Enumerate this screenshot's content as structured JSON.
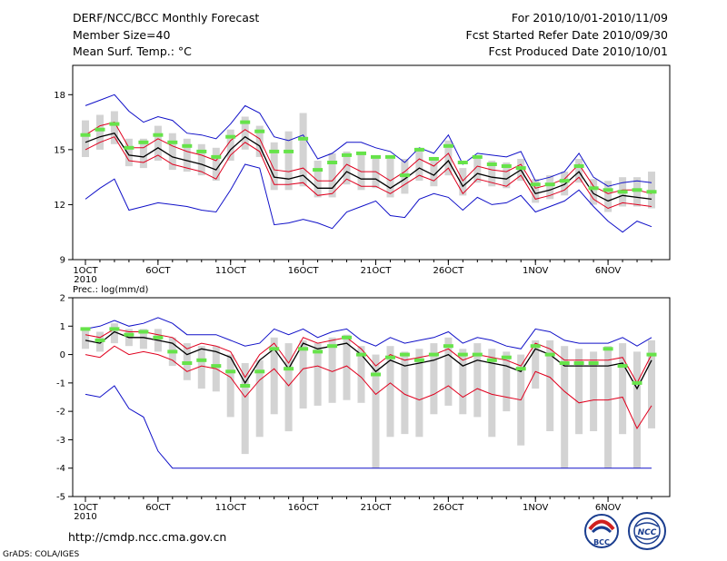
{
  "header": {
    "title": "DERF/NCC/BCC Monthly Forecast",
    "member_size": "Member Size=40",
    "variable": "Mean Surf. Temp.: °C",
    "period": "For 2010/10/01-2010/11/09",
    "fcst_started": "Fcst Started Refer Date 2010/09/30",
    "fcst_produced": "Fcst Produced Date 2010/10/01"
  },
  "footer": {
    "url": "http://cmdp.ncc.cma.gov.cn",
    "credit": "GrADS: COLA/IGES"
  },
  "logos": {
    "bcc": "BCC",
    "ncc": "NCC"
  },
  "colors": {
    "spread": "#d3d3d3",
    "observed": "#66e34a",
    "mean": "#000000",
    "inner": "#e0001e",
    "outer": "#1010c8",
    "frame": "#000000"
  },
  "chart_data": [
    {
      "type": "line",
      "title": "Mean Surf. Temp.: °C",
      "x_tick_labels": [
        "1OCT",
        "6OCT",
        "11OCT",
        "16OCT",
        "21OCT",
        "26OCT",
        "1NOV",
        "6NOV"
      ],
      "x_tick_days": [
        1,
        6,
        11,
        16,
        21,
        26,
        32,
        37
      ],
      "x_year_label": "2010",
      "ylim": [
        9,
        19.6
      ],
      "yticks": [
        9,
        12,
        15,
        18
      ],
      "days": [
        1,
        2,
        3,
        4,
        5,
        6,
        7,
        8,
        9,
        10,
        11,
        12,
        13,
        14,
        15,
        16,
        17,
        18,
        19,
        20,
        21,
        22,
        23,
        24,
        25,
        26,
        27,
        28,
        29,
        30,
        31,
        32,
        33,
        34,
        35,
        36,
        37,
        38,
        39,
        40
      ],
      "series": [
        {
          "name": "ensemble mean",
          "values": [
            15.4,
            15.7,
            15.9,
            14.7,
            14.6,
            15.1,
            14.6,
            14.4,
            14.2,
            13.9,
            15.0,
            15.7,
            15.2,
            13.5,
            13.4,
            13.6,
            12.9,
            12.9,
            13.8,
            13.4,
            13.4,
            12.9,
            13.4,
            14.0,
            13.6,
            14.4,
            13.0,
            13.7,
            13.5,
            13.4,
            13.9,
            12.6,
            12.8,
            13.1,
            13.8,
            12.6,
            12.2,
            12.5,
            12.4,
            12.3
          ]
        },
        {
          "name": "upper band",
          "values": [
            15.8,
            16.3,
            16.5,
            15.1,
            15.1,
            15.6,
            15.2,
            14.9,
            14.7,
            14.4,
            15.5,
            16.1,
            15.6,
            13.9,
            13.8,
            14.0,
            13.3,
            13.3,
            14.2,
            13.8,
            13.8,
            13.3,
            13.8,
            14.5,
            14.1,
            14.8,
            13.3,
            14.1,
            13.9,
            13.8,
            14.2,
            12.9,
            13.1,
            13.4,
            14.2,
            13.0,
            12.6,
            12.8,
            12.8,
            12.6
          ]
        },
        {
          "name": "lower band",
          "values": [
            15.0,
            15.4,
            15.7,
            14.4,
            14.3,
            14.7,
            14.2,
            14.0,
            13.8,
            13.4,
            14.7,
            15.4,
            14.9,
            13.1,
            13.1,
            13.2,
            12.5,
            12.6,
            13.4,
            13.0,
            13.0,
            12.6,
            13.1,
            13.6,
            13.3,
            14.0,
            12.6,
            13.4,
            13.2,
            13.0,
            13.6,
            12.3,
            12.5,
            12.8,
            13.5,
            12.3,
            11.8,
            12.1,
            12.0,
            11.9
          ]
        },
        {
          "name": "ensemble max",
          "values": [
            17.4,
            17.7,
            18.0,
            17.1,
            16.5,
            16.8,
            16.6,
            15.9,
            15.8,
            15.6,
            16.4,
            17.4,
            17.0,
            15.7,
            15.5,
            15.8,
            14.5,
            14.8,
            15.4,
            15.4,
            15.1,
            14.9,
            14.3,
            15.1,
            14.8,
            15.8,
            14.2,
            14.8,
            14.7,
            14.6,
            14.9,
            13.3,
            13.5,
            13.8,
            14.8,
            13.5,
            13.0,
            13.2,
            13.3,
            13.2
          ]
        },
        {
          "name": "ensemble min",
          "values": [
            12.3,
            12.9,
            13.4,
            11.7,
            11.9,
            12.1,
            12.0,
            11.9,
            11.7,
            11.6,
            12.8,
            14.2,
            14.0,
            10.9,
            11.0,
            11.2,
            11.0,
            10.7,
            11.6,
            11.9,
            12.2,
            11.4,
            11.3,
            12.3,
            12.6,
            12.4,
            11.7,
            12.4,
            12.0,
            12.1,
            12.5,
            11.6,
            11.9,
            12.2,
            12.8,
            11.9,
            11.1,
            10.5,
            11.1,
            10.8
          ]
        },
        {
          "name": "observed",
          "values": [
            15.8,
            16.1,
            16.4,
            15.1,
            15.4,
            15.8,
            15.4,
            15.2,
            14.9,
            14.6,
            15.7,
            16.5,
            16.0,
            14.9,
            14.9,
            15.6,
            13.9,
            14.3,
            14.7,
            14.8,
            14.6,
            14.6,
            13.6,
            15.0,
            14.5,
            15.2,
            14.3,
            14.6,
            14.2,
            14.1,
            14.0,
            13.1,
            13.1,
            13.3,
            14.1,
            12.9,
            12.8,
            12.7,
            12.8,
            12.7
          ]
        },
        {
          "name": "spread low",
          "values": [
            14.6,
            15.0,
            15.3,
            14.1,
            14.0,
            14.4,
            13.9,
            13.8,
            13.6,
            13.3,
            14.4,
            15.0,
            14.6,
            12.8,
            12.8,
            13.0,
            12.4,
            12.4,
            13.1,
            12.8,
            12.9,
            12.4,
            12.6,
            13.3,
            13.0,
            13.6,
            12.5,
            13.2,
            13.0,
            12.9,
            13.3,
            12.1,
            12.3,
            12.5,
            13.2,
            12.0,
            11.6,
            11.9,
            11.9,
            11.8
          ]
        },
        {
          "name": "spread high",
          "values": [
            16.6,
            16.9,
            17.1,
            15.6,
            15.6,
            16.3,
            15.9,
            15.6,
            15.3,
            15.1,
            16.1,
            16.8,
            16.3,
            15.4,
            16.0,
            17.0,
            14.4,
            14.8,
            14.9,
            14.8,
            14.6,
            14.5,
            14.5,
            15.1,
            14.6,
            15.5,
            14.0,
            14.6,
            14.4,
            14.3,
            14.5,
            13.4,
            13.6,
            13.8,
            14.5,
            13.4,
            13.3,
            13.5,
            13.5,
            13.8
          ]
        }
      ]
    },
    {
      "type": "line",
      "title": "Prec.: log(mm/d)",
      "x_tick_labels": [
        "1OCT",
        "6OCT",
        "11OCT",
        "16OCT",
        "21OCT",
        "26OCT",
        "1NOV",
        "6NOV"
      ],
      "x_tick_days": [
        1,
        6,
        11,
        16,
        21,
        26,
        32,
        37
      ],
      "x_year_label": "2010",
      "ylim": [
        -5,
        2
      ],
      "yticks": [
        -5,
        -4,
        -3,
        -2,
        -1,
        0,
        1,
        2
      ],
      "days": [
        1,
        2,
        3,
        4,
        5,
        6,
        7,
        8,
        9,
        10,
        11,
        12,
        13,
        14,
        15,
        16,
        17,
        18,
        19,
        20,
        21,
        22,
        23,
        24,
        25,
        26,
        27,
        28,
        29,
        30,
        31,
        32,
        33,
        34,
        35,
        36,
        37,
        38,
        39,
        40
      ],
      "series": [
        {
          "name": "ensemble mean",
          "values": [
            0.5,
            0.4,
            0.8,
            0.6,
            0.6,
            0.5,
            0.4,
            0.0,
            0.2,
            0.1,
            -0.1,
            -1.0,
            -0.2,
            0.2,
            -0.5,
            0.4,
            0.2,
            0.3,
            0.4,
            0.0,
            -0.6,
            -0.2,
            -0.4,
            -0.3,
            -0.2,
            0.0,
            -0.4,
            -0.2,
            -0.3,
            -0.4,
            -0.6,
            0.2,
            0.0,
            -0.4,
            -0.4,
            -0.4,
            -0.4,
            -0.3,
            -1.2,
            -0.2
          ]
        },
        {
          "name": "upper band",
          "values": [
            0.7,
            0.6,
            0.9,
            0.8,
            0.8,
            0.7,
            0.6,
            0.2,
            0.4,
            0.3,
            0.1,
            -0.8,
            0.0,
            0.4,
            -0.3,
            0.6,
            0.4,
            0.5,
            0.6,
            0.2,
            -0.4,
            0.0,
            -0.2,
            -0.1,
            0.0,
            0.2,
            -0.2,
            0.0,
            -0.1,
            -0.2,
            -0.4,
            0.4,
            0.2,
            -0.2,
            -0.2,
            -0.2,
            -0.2,
            -0.1,
            -1.0,
            0.0
          ]
        },
        {
          "name": "lower band",
          "values": [
            0.0,
            -0.1,
            0.3,
            0.0,
            0.1,
            0.0,
            -0.2,
            -0.6,
            -0.4,
            -0.5,
            -0.8,
            -1.5,
            -0.9,
            -0.5,
            -1.1,
            -0.5,
            -0.4,
            -0.6,
            -0.4,
            -0.8,
            -1.4,
            -1.0,
            -1.4,
            -1.6,
            -1.4,
            -1.1,
            -1.5,
            -1.2,
            -1.4,
            -1.5,
            -1.6,
            -0.6,
            -0.8,
            -1.3,
            -1.7,
            -1.6,
            -1.6,
            -1.5,
            -2.6,
            -1.8
          ]
        },
        {
          "name": "ensemble max",
          "values": [
            0.9,
            1.0,
            1.2,
            1.0,
            1.1,
            1.3,
            1.1,
            0.7,
            0.7,
            0.7,
            0.5,
            0.3,
            0.4,
            0.9,
            0.7,
            0.9,
            0.6,
            0.8,
            0.9,
            0.5,
            0.3,
            0.6,
            0.4,
            0.5,
            0.6,
            0.8,
            0.4,
            0.6,
            0.5,
            0.3,
            0.2,
            0.9,
            0.8,
            0.5,
            0.4,
            0.4,
            0.4,
            0.6,
            0.3,
            0.6
          ]
        },
        {
          "name": "ensemble min",
          "values": [
            -1.4,
            -1.5,
            -1.1,
            -1.9,
            -2.2,
            -3.4,
            -4.0,
            -4.0,
            -4.0,
            -4.0,
            -4.0,
            -4.0,
            -4.0,
            -4.0,
            -4.0,
            -4.0,
            -4.0,
            -4.0,
            -4.0,
            -4.0,
            -4.0,
            -4.0,
            -4.0,
            -4.0,
            -4.0,
            -4.0,
            -4.0,
            -4.0,
            -4.0,
            -4.0,
            -4.0,
            -4.0,
            -4.0,
            -4.0,
            -4.0,
            -4.0,
            -4.0,
            -4.0,
            -4.0,
            -4.0
          ]
        },
        {
          "name": "observed",
          "values": [
            0.9,
            0.5,
            0.9,
            0.7,
            0.8,
            0.6,
            0.1,
            -0.3,
            -0.2,
            -0.4,
            -0.6,
            -1.1,
            -0.6,
            0.2,
            -0.5,
            0.2,
            0.1,
            0.3,
            0.6,
            0.0,
            -0.7,
            -0.1,
            0.0,
            -0.2,
            0.0,
            0.3,
            0.0,
            0.0,
            -0.2,
            -0.1,
            -0.5,
            0.3,
            0.0,
            -0.3,
            -0.3,
            -0.3,
            0.2,
            -0.4,
            -1.0,
            0.0
          ]
        },
        {
          "name": "spread low",
          "values": [
            0.2,
            0.1,
            0.4,
            0.3,
            0.2,
            0.1,
            -0.4,
            -0.9,
            -1.2,
            -1.3,
            -2.2,
            -3.5,
            -2.9,
            -2.1,
            -2.7,
            -1.9,
            -1.8,
            -1.7,
            -1.6,
            -1.7,
            -4.0,
            -2.9,
            -2.8,
            -2.9,
            -2.1,
            -1.8,
            -2.1,
            -2.2,
            -2.9,
            -2.0,
            -3.2,
            -1.2,
            -2.7,
            -4.0,
            -2.8,
            -2.7,
            -4.0,
            -2.8,
            -4.0,
            -2.6
          ]
        },
        {
          "name": "spread high",
          "values": [
            0.9,
            0.8,
            1.1,
            0.9,
            0.9,
            0.9,
            0.6,
            0.4,
            0.3,
            0.3,
            0.0,
            -0.3,
            -0.2,
            0.6,
            0.4,
            0.5,
            0.4,
            0.6,
            0.7,
            0.3,
            0.0,
            0.3,
            0.1,
            0.2,
            0.4,
            0.6,
            0.2,
            0.4,
            0.2,
            0.1,
            0.0,
            0.5,
            0.5,
            0.3,
            0.2,
            0.1,
            0.3,
            0.4,
            0.1,
            0.5
          ]
        }
      ]
    }
  ]
}
